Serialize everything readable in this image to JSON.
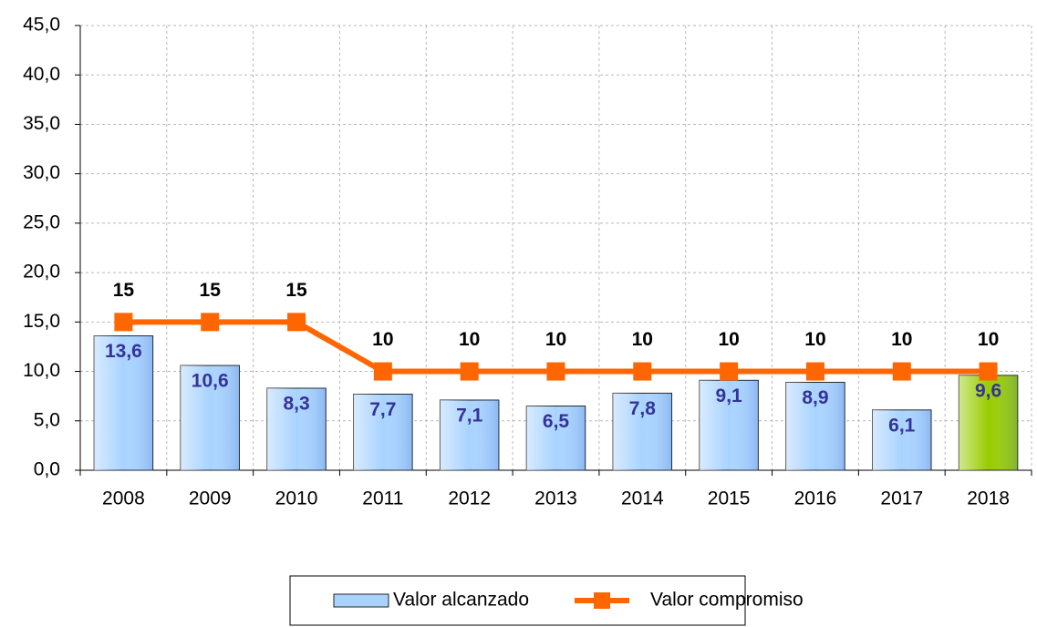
{
  "chart_data": {
    "type": "bar_line",
    "categories": [
      "2008",
      "2009",
      "2010",
      "2011",
      "2012",
      "2013",
      "2014",
      "2015",
      "2016",
      "2017",
      "2018"
    ],
    "series": [
      {
        "name": "Valor alcanzado",
        "type": "bar",
        "color": "#a9d3ff",
        "colors": [
          "#a9d3ff",
          "#a9d3ff",
          "#a9d3ff",
          "#a9d3ff",
          "#a9d3ff",
          "#a9d3ff",
          "#a9d3ff",
          "#a9d3ff",
          "#a9d3ff",
          "#a9d3ff",
          "#99cc00"
        ],
        "values": [
          13.6,
          10.6,
          8.3,
          7.7,
          7.1,
          6.5,
          7.8,
          9.1,
          8.9,
          6.1,
          9.6
        ],
        "value_labels": [
          "13,6",
          "10,6",
          "8,3",
          "7,7",
          "7,1",
          "6,5",
          "7,8",
          "9,1",
          "8,9",
          "6,1",
          "9,6"
        ]
      },
      {
        "name": "Valor compromiso",
        "type": "line",
        "color": "#ff6600",
        "values": [
          15,
          15,
          15,
          10,
          10,
          10,
          10,
          10,
          10,
          10,
          10
        ]
      }
    ],
    "ylim": [
      0,
      45
    ],
    "yticks": [
      {
        "value": 0,
        "label": "0,0"
      },
      {
        "value": 5,
        "label": "5,0"
      },
      {
        "value": 10,
        "label": "10,0"
      },
      {
        "value": 15,
        "label": "15,0"
      },
      {
        "value": 20,
        "label": "20,0"
      },
      {
        "value": 25,
        "label": "25,0"
      },
      {
        "value": 30,
        "label": "30,0"
      },
      {
        "value": 35,
        "label": "35,0"
      },
      {
        "value": 40,
        "label": "40,0"
      },
      {
        "value": 45,
        "label": "45,0"
      }
    ],
    "grid": true,
    "legend": "bottom"
  }
}
